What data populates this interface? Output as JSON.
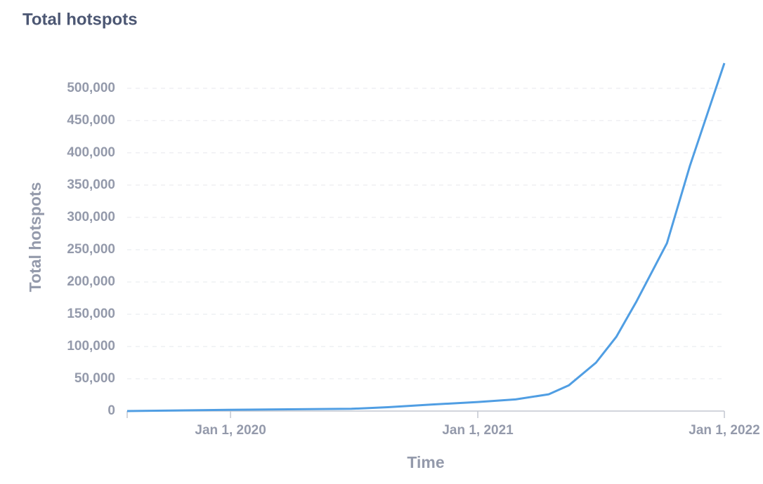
{
  "chart_data": {
    "type": "line",
    "title": "Total hotspots",
    "x_label": "Time",
    "y_label": "Total hotspots",
    "x": [
      "2019-08-01",
      "2019-12-28",
      "2020-06-28",
      "2020-08-21",
      "2020-10-24",
      "2021-01-01",
      "2021-02-26",
      "2021-04-16",
      "2021-05-16",
      "2021-06-25",
      "2021-07-25",
      "2021-08-24",
      "2021-10-08",
      "2021-11-11",
      "2022-01-01"
    ],
    "series": [
      {
        "name": "Total hotspots",
        "color": "#509ee3",
        "values": [
          0,
          2000,
          3500,
          6000,
          10000,
          14000,
          18000,
          26000,
          40000,
          75000,
          115000,
          170000,
          260000,
          380000,
          539000
        ]
      }
    ],
    "xlim": [
      "2019-08-01",
      "2022-01-01"
    ],
    "xticks": [
      {
        "value": "2020-01-01",
        "label": "Jan 1, 2020"
      },
      {
        "value": "2021-01-01",
        "label": "Jan 1, 2021"
      },
      {
        "value": "2022-01-01",
        "label": "Jan 1, 2022"
      }
    ],
    "ylim": [
      0,
      539000
    ],
    "yticks": [
      0,
      {
        "value": 50000,
        "label": "50,000"
      },
      {
        "value": 100000,
        "label": "100,000"
      },
      {
        "value": 150000,
        "label": "150,000"
      },
      {
        "value": 200000,
        "label": "200,000"
      },
      {
        "value": 250000,
        "label": "250,000"
      },
      {
        "value": 300000,
        "label": "300,000"
      },
      {
        "value": 350000,
        "label": "350,000"
      },
      {
        "value": 400000,
        "label": "400,000"
      },
      {
        "value": 450000,
        "label": "450,000"
      },
      {
        "value": 500000,
        "label": "500,000"
      }
    ],
    "grid": true
  }
}
